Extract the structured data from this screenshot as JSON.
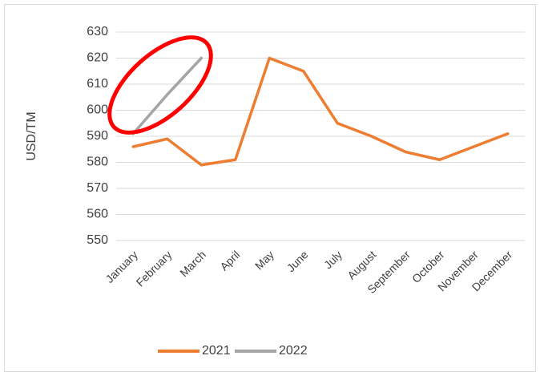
{
  "chart_data": {
    "type": "line",
    "y_label": "USD/TM",
    "categories": [
      "January",
      "February",
      "March",
      "April",
      "May",
      "June",
      "July",
      "August",
      "September",
      "October",
      "November",
      "December"
    ],
    "series": [
      {
        "name": "2021",
        "color": "#ed7d31",
        "values": [
          586,
          589,
          579,
          581,
          620,
          615,
          595,
          590,
          584,
          581,
          586,
          591
        ]
      },
      {
        "name": "2022",
        "color": "#a5a5a5",
        "values": [
          591,
          606,
          620,
          null,
          null,
          null,
          null,
          null,
          null,
          null,
          null,
          null
        ]
      }
    ],
    "ylim": [
      550,
      630
    ],
    "yticks": [
      550,
      560,
      570,
      580,
      590,
      600,
      610,
      620,
      630
    ],
    "grid": true,
    "legend": "bottom"
  }
}
